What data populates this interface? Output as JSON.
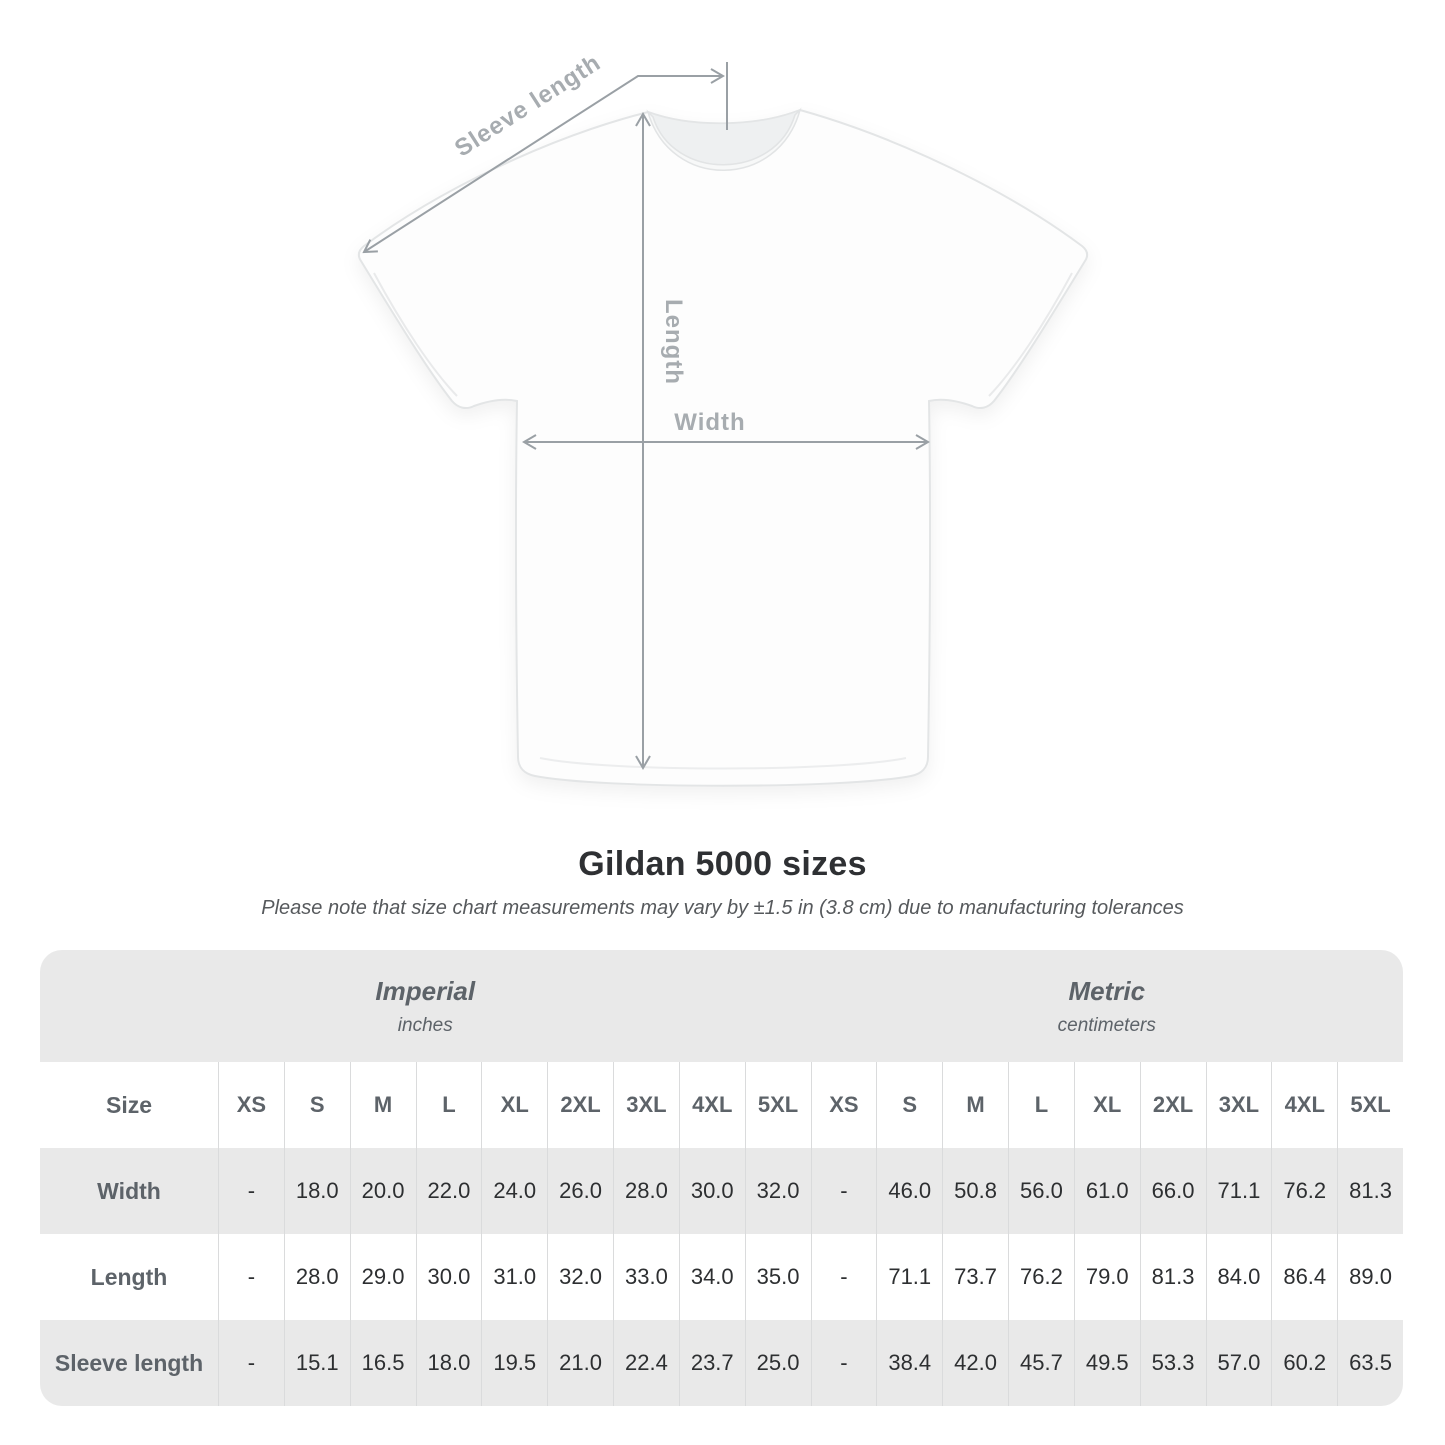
{
  "colors": {
    "row-gray": "#e9e9e9",
    "divider": "#dadbdc",
    "head-text": "#5d6369",
    "value-text": "#2d2f31",
    "title-text": "#2e3033",
    "subtitle-text": "#56595c",
    "diagram-line": "#9aa0a5",
    "diagram-label": "#a7acb0"
  },
  "diagram": {
    "labels": {
      "sleeve_length": "Sleeve length",
      "length": "Length",
      "width": "Width"
    }
  },
  "chart_data": {
    "type": "table",
    "title": "Gildan 5000 sizes",
    "note": "Please note that size chart measurements may vary by ±1.5 in (3.8 cm) due to manufacturing tolerances",
    "size_column_header": "Size",
    "unit_groups": [
      {
        "label": "Imperial",
        "sublabel": "inches"
      },
      {
        "label": "Metric",
        "sublabel": "centimeters"
      }
    ],
    "sizes": [
      "XS",
      "S",
      "M",
      "L",
      "XL",
      "2XL",
      "3XL",
      "4XL",
      "5XL"
    ],
    "rows": [
      {
        "label": "Width",
        "imperial": [
          "-",
          "18.0",
          "20.0",
          "22.0",
          "24.0",
          "26.0",
          "28.0",
          "30.0",
          "32.0"
        ],
        "metric": [
          "-",
          "46.0",
          "50.8",
          "56.0",
          "61.0",
          "66.0",
          "71.1",
          "76.2",
          "81.3"
        ]
      },
      {
        "label": "Length",
        "imperial": [
          "-",
          "28.0",
          "29.0",
          "30.0",
          "31.0",
          "32.0",
          "33.0",
          "34.0",
          "35.0"
        ],
        "metric": [
          "-",
          "71.1",
          "73.7",
          "76.2",
          "79.0",
          "81.3",
          "84.0",
          "86.4",
          "89.0"
        ]
      },
      {
        "label": "Sleeve length",
        "imperial": [
          "-",
          "15.1",
          "16.5",
          "18.0",
          "19.5",
          "21.0",
          "22.4",
          "23.7",
          "25.0"
        ],
        "metric": [
          "-",
          "38.4",
          "42.0",
          "45.7",
          "49.5",
          "53.3",
          "57.0",
          "60.2",
          "63.5"
        ]
      }
    ]
  }
}
